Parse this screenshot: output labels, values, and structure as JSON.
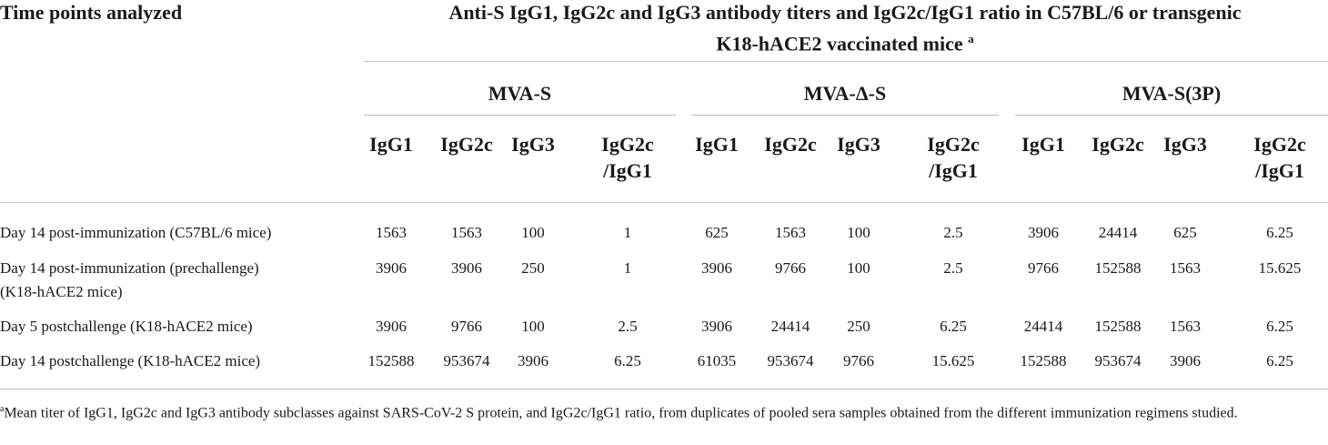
{
  "header": {
    "col_label": "Time points analyzed",
    "caption_line1": "Anti-S IgG1, IgG2c and IgG3 antibody titers and IgG2c/IgG1 ratio in C57BL/6 or transgenic",
    "caption_line2": "K18-hACE2 vaccinated mice",
    "caption_sup": "a"
  },
  "groups": [
    {
      "name": "MVA-S"
    },
    {
      "name": "MVA-Δ-S"
    },
    {
      "name": "MVA-S(3P)"
    }
  ],
  "subheaders": {
    "igg1": "IgG1",
    "igg2c": "IgG2c",
    "igg3": "IgG3",
    "ratio_line1": "IgG2c",
    "ratio_line2": "/IgG1"
  },
  "rows": [
    {
      "label": "Day 14 post-immunization (C57BL/6 mice)",
      "label2": "",
      "values": [
        "1563",
        "1563",
        "100",
        "1",
        "625",
        "1563",
        "100",
        "2.5",
        "3906",
        "24414",
        "625",
        "6.25"
      ]
    },
    {
      "label": "Day 14 post-immunization (prechallenge)",
      "label2": "(K18-hACE2 mice)",
      "values": [
        "3906",
        "3906",
        "250",
        "1",
        "3906",
        "9766",
        "100",
        "2.5",
        "9766",
        "152588",
        "1563",
        "15.625"
      ]
    },
    {
      "label": "Day 5 postchallenge (K18-hACE2 mice)",
      "label2": "",
      "values": [
        "3906",
        "9766",
        "100",
        "2.5",
        "3906",
        "24414",
        "250",
        "6.25",
        "24414",
        "152588",
        "1563",
        "6.25"
      ]
    },
    {
      "label": "Day 14 postchallenge (K18-hACE2 mice)",
      "label2": "",
      "values": [
        "152588",
        "953674",
        "3906",
        "6.25",
        "61035",
        "953674",
        "9766",
        "15.625",
        "152588",
        "953674",
        "3906",
        "6.25"
      ]
    }
  ],
  "footnote": {
    "marker": "a",
    "text": "Mean titer of IgG1, IgG2c and IgG3 antibody subclasses against SARS-CoV-2 S protein, and IgG2c/IgG1 ratio, from duplicates of pooled sera samples obtained from the different immunization regimens studied."
  }
}
